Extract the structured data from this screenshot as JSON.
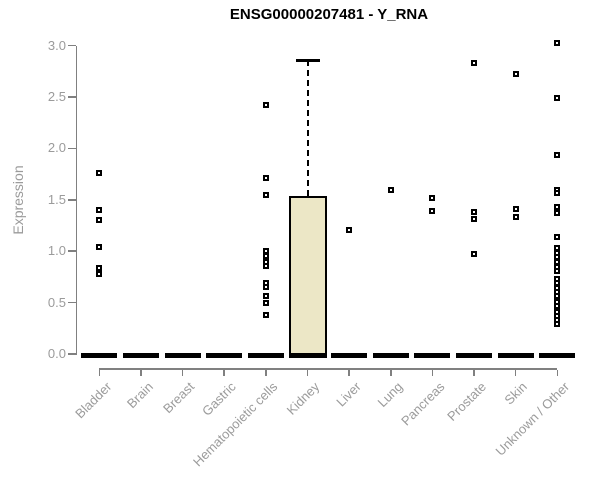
{
  "chart_data": {
    "type": "boxplot",
    "title": "ENSG00000207481 - Y_RNA",
    "ylabel": "Expression",
    "xlabel": "",
    "ylim": [
      0,
      3.0
    ],
    "yticks": [
      0.0,
      0.5,
      1.0,
      1.5,
      2.0,
      2.5,
      3.0
    ],
    "grid": false,
    "legend": "none",
    "categories": [
      "Bladder",
      "Brain",
      "Breast",
      "Gastric",
      "Hematopoietic cells",
      "Kidney",
      "Liver",
      "Lung",
      "Pancreas",
      "Prostate",
      "Skin",
      "Unknown / Other"
    ],
    "series": [
      {
        "category": "Bladder",
        "box": {
          "q1": 0,
          "median": 0,
          "q3": 0
        },
        "points": [
          1.76,
          1.4,
          1.3,
          1.04,
          0.84,
          0.78
        ]
      },
      {
        "category": "Brain",
        "box": {
          "q1": 0,
          "median": 0,
          "q3": 0
        },
        "points": []
      },
      {
        "category": "Breast",
        "box": {
          "q1": 0,
          "median": 0,
          "q3": 0
        },
        "points": []
      },
      {
        "category": "Gastric",
        "box": {
          "q1": 0,
          "median": 0,
          "q3": 0
        },
        "points": []
      },
      {
        "category": "Hematopoietic cells",
        "box": {
          "q1": 0,
          "median": 0,
          "q3": 0
        },
        "points": [
          2.42,
          1.71,
          1.55,
          1.0,
          0.95,
          0.9,
          0.86,
          0.69,
          0.65,
          0.56,
          0.5,
          0.38
        ]
      },
      {
        "category": "Kidney",
        "box": {
          "q1": 0,
          "median": 0,
          "q3": 1.54,
          "whisker_high": 2.86
        },
        "points": []
      },
      {
        "category": "Liver",
        "box": {
          "q1": 0,
          "median": 0,
          "q3": 0
        },
        "points": [
          1.21
        ]
      },
      {
        "category": "Lung",
        "box": {
          "q1": 0,
          "median": 0,
          "q3": 0
        },
        "points": [
          1.6
        ]
      },
      {
        "category": "Pancreas",
        "box": {
          "q1": 0,
          "median": 0,
          "q3": 0
        },
        "points": [
          1.52,
          1.39
        ]
      },
      {
        "category": "Prostate",
        "box": {
          "q1": 0,
          "median": 0,
          "q3": 0
        },
        "points": [
          2.83,
          1.38,
          1.31,
          0.97
        ]
      },
      {
        "category": "Skin",
        "box": {
          "q1": 0,
          "median": 0,
          "q3": 0
        },
        "points": [
          2.72,
          1.41,
          1.33
        ]
      },
      {
        "category": "Unknown / Other",
        "box": {
          "q1": 0,
          "median": 0,
          "q3": 0
        },
        "points": [
          3.03,
          2.49,
          1.94,
          1.6,
          1.57,
          1.43,
          1.37,
          1.14,
          1.03,
          0.98,
          0.94,
          0.9,
          0.85,
          0.81,
          0.73,
          0.69,
          0.64,
          0.6,
          0.56,
          0.51,
          0.47,
          0.41,
          0.37,
          0.33,
          0.29
        ]
      }
    ],
    "colors": {
      "box_fill": "#ece7c6",
      "box_border": "#000000",
      "median_bar": "#000000",
      "point": "#000000",
      "whisker": "#000000",
      "axis_line": "#808080",
      "axis_text": "#9b9b9b",
      "title": "#000000",
      "background": "#ffffff"
    }
  }
}
